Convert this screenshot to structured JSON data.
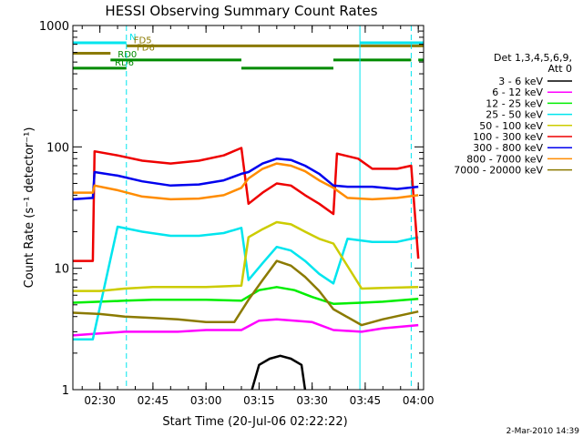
{
  "footer_date": "2-Mar-2010 14:39",
  "chart_data": {
    "type": "line",
    "title": "HESSI Observing Summary Count Rates",
    "xlabel": "Start Time (20-Jul-06 02:22:22)",
    "ylabel": "Count Rate (s⁻¹ detector⁻¹)",
    "yscale": "log",
    "xlim": [
      "02:22:22",
      "04:01:30"
    ],
    "ylim": [
      1,
      1000
    ],
    "x_ticks": [
      "02:30",
      "02:45",
      "03:00",
      "03:15",
      "03:30",
      "03:45",
      "04:00"
    ],
    "y_ticks": [
      "1",
      "10",
      "100",
      "1000"
    ],
    "grid": false,
    "legend_position": "right",
    "legend_header": [
      "Det 1,3,4,5,6,9,",
      "Att 0"
    ],
    "vertical_lines": [
      {
        "time": "02:22:22",
        "style": "solid",
        "color": "#00e5ee"
      },
      {
        "time": "02:37:30",
        "style": "dashed",
        "color": "#00e5ee"
      },
      {
        "time": "03:43:30",
        "style": "solid",
        "color": "#00e5ee"
      },
      {
        "time": "03:58:00",
        "style": "dashed",
        "color": "#00e5ee"
      }
    ],
    "flag_bars": [
      {
        "label": "N",
        "color": "#00e5ee",
        "y": 720,
        "segments": [
          [
            "02:22:22",
            "02:37:30"
          ],
          [
            "03:43:30",
            "04:01:30"
          ]
        ]
      },
      {
        "label": "FD5",
        "color": "#8b7a00",
        "y": 680,
        "segments": [
          [
            "02:37:30",
            "04:01:30"
          ]
        ]
      },
      {
        "label": "FD6",
        "color": "#8b7a00",
        "y": 590,
        "segments": [
          [
            "02:22:22",
            "02:33:00"
          ]
        ]
      },
      {
        "label": "RD0",
        "color": "#008b00",
        "y": 520,
        "segments": [
          [
            "02:33:00",
            "03:10:00"
          ],
          [
            "03:36:00",
            "03:58:00"
          ],
          [
            "04:00:00",
            "04:01:30"
          ]
        ]
      },
      {
        "label": "RD6",
        "color": "#008b00",
        "y": 445,
        "segments": [
          [
            "02:22:22",
            "02:37:30"
          ],
          [
            "03:10:00",
            "03:36:00"
          ]
        ]
      }
    ],
    "series": [
      {
        "name": "3 - 6 keV",
        "color": "#000000",
        "x": [
          "03:13:00",
          "03:15:00",
          "03:18:00",
          "03:21:00",
          "03:24:00",
          "03:27:00",
          "03:28:00"
        ],
        "values": [
          1.0,
          1.6,
          1.8,
          1.9,
          1.8,
          1.6,
          1.0
        ]
      },
      {
        "name": "6 - 12 keV",
        "color": "#ff00ff",
        "x": [
          "02:22:22",
          "02:30:00",
          "02:37:00",
          "02:45:00",
          "02:52:00",
          "03:00:00",
          "03:10:00",
          "03:15:00",
          "03:20:00",
          "03:25:00",
          "03:30:00",
          "03:36:00",
          "03:44:00",
          "03:50:00",
          "04:00:00"
        ],
        "values": [
          2.8,
          2.9,
          3.0,
          3.0,
          3.0,
          3.1,
          3.1,
          3.7,
          3.8,
          3.7,
          3.6,
          3.1,
          3.0,
          3.2,
          3.4
        ]
      },
      {
        "name": "12 - 25 keV",
        "color": "#00ee00",
        "x": [
          "02:22:22",
          "02:30:00",
          "02:37:00",
          "02:45:00",
          "02:52:00",
          "03:00:00",
          "03:10:00",
          "03:15:00",
          "03:20:00",
          "03:25:00",
          "03:30:00",
          "03:36:00",
          "03:44:00",
          "03:50:00",
          "04:00:00"
        ],
        "values": [
          5.2,
          5.3,
          5.4,
          5.5,
          5.5,
          5.5,
          5.4,
          6.6,
          7.0,
          6.6,
          5.8,
          5.1,
          5.2,
          5.3,
          5.6
        ]
      },
      {
        "name": "25 - 50 keV",
        "color": "#00e5ee",
        "x": [
          "02:22:22",
          "02:28:00",
          "02:35:00",
          "02:42:00",
          "02:50:00",
          "02:58:00",
          "03:05:00",
          "03:10:00",
          "03:12:00",
          "03:16:00",
          "03:20:00",
          "03:24:00",
          "03:28:00",
          "03:32:00",
          "03:36:00",
          "03:40:00",
          "03:47:00",
          "03:54:00",
          "04:00:00"
        ],
        "values": [
          2.6,
          2.6,
          22.0,
          20.0,
          18.5,
          18.5,
          19.5,
          21.5,
          8.0,
          11.0,
          15.0,
          14.0,
          11.5,
          9.0,
          7.5,
          17.5,
          16.5,
          16.5,
          18.0
        ]
      },
      {
        "name": "50 - 100 keV",
        "color": "#cccc00",
        "x": [
          "02:22:22",
          "02:30:00",
          "02:37:00",
          "02:45:00",
          "02:52:00",
          "03:00:00",
          "03:10:00",
          "03:12:00",
          "03:16:00",
          "03:20:00",
          "03:24:00",
          "03:28:00",
          "03:32:00",
          "03:36:00",
          "03:44:00",
          "03:50:00",
          "04:00:00"
        ],
        "values": [
          6.5,
          6.5,
          6.8,
          7.0,
          7.0,
          7.0,
          7.2,
          18.0,
          21.0,
          24.0,
          23.0,
          20.0,
          17.5,
          16.0,
          6.8,
          6.9,
          7.0
        ]
      },
      {
        "name": "100 - 300 keV",
        "color": "#ee0000",
        "x": [
          "02:22:22",
          "02:28:00",
          "02:28:30",
          "02:35:00",
          "02:42:00",
          "02:50:00",
          "02:58:00",
          "03:05:00",
          "03:10:00",
          "03:12:00",
          "03:16:00",
          "03:20:00",
          "03:24:00",
          "03:28:00",
          "03:32:00",
          "03:36:00",
          "03:37:00",
          "03:43:00",
          "03:47:00",
          "03:54:00",
          "03:58:00",
          "04:00:00"
        ],
        "values": [
          11.5,
          11.5,
          92.0,
          85.0,
          77.0,
          73.0,
          77.0,
          85.0,
          98.0,
          34.0,
          42.0,
          50.0,
          48.0,
          40.0,
          34.0,
          28.0,
          88.0,
          80.0,
          66.0,
          66.0,
          70.0,
          12.0
        ]
      },
      {
        "name": "300 - 800 keV",
        "color": "#0000ee",
        "x": [
          "02:22:22",
          "02:28:00",
          "02:28:30",
          "02:35:00",
          "02:42:00",
          "02:50:00",
          "02:58:00",
          "03:05:00",
          "03:10:00",
          "03:12:00",
          "03:16:00",
          "03:20:00",
          "03:24:00",
          "03:28:00",
          "03:32:00",
          "03:36:00",
          "03:40:00",
          "03:47:00",
          "03:54:00",
          "04:00:00"
        ],
        "values": [
          37.0,
          38.0,
          62.0,
          58.0,
          52.0,
          48.0,
          49.0,
          53.0,
          60.0,
          62.0,
          73.0,
          80.0,
          78.0,
          70.0,
          60.0,
          48.0,
          47.0,
          47.0,
          45.0,
          47.0
        ]
      },
      {
        "name": "800 - 7000 keV",
        "color": "#ff8c00",
        "x": [
          "02:22:22",
          "02:28:00",
          "02:28:30",
          "02:35:00",
          "02:42:00",
          "02:50:00",
          "02:58:00",
          "03:05:00",
          "03:10:00",
          "03:12:00",
          "03:16:00",
          "03:20:00",
          "03:24:00",
          "03:28:00",
          "03:32:00",
          "03:36:00",
          "03:40:00",
          "03:47:00",
          "03:54:00",
          "04:00:00"
        ],
        "values": [
          42.0,
          42.0,
          48.0,
          44.0,
          39.0,
          37.0,
          37.5,
          40.0,
          46.0,
          55.0,
          66.0,
          73.0,
          70.0,
          63.0,
          53.0,
          46.0,
          38.0,
          37.0,
          38.0,
          40.0
        ]
      },
      {
        "name": "7000 - 20000 keV",
        "color": "#8b7a00",
        "x": [
          "02:22:22",
          "02:30:00",
          "02:37:00",
          "02:45:00",
          "02:52:00",
          "03:00:00",
          "03:08:00",
          "03:12:00",
          "03:16:00",
          "03:20:00",
          "03:24:00",
          "03:28:00",
          "03:32:00",
          "03:36:00",
          "03:44:00",
          "03:50:00",
          "04:00:00"
        ],
        "values": [
          4.3,
          4.2,
          4.0,
          3.9,
          3.8,
          3.6,
          3.6,
          5.5,
          8.0,
          11.5,
          10.5,
          8.5,
          6.5,
          4.6,
          3.4,
          3.8,
          4.4
        ]
      }
    ]
  }
}
